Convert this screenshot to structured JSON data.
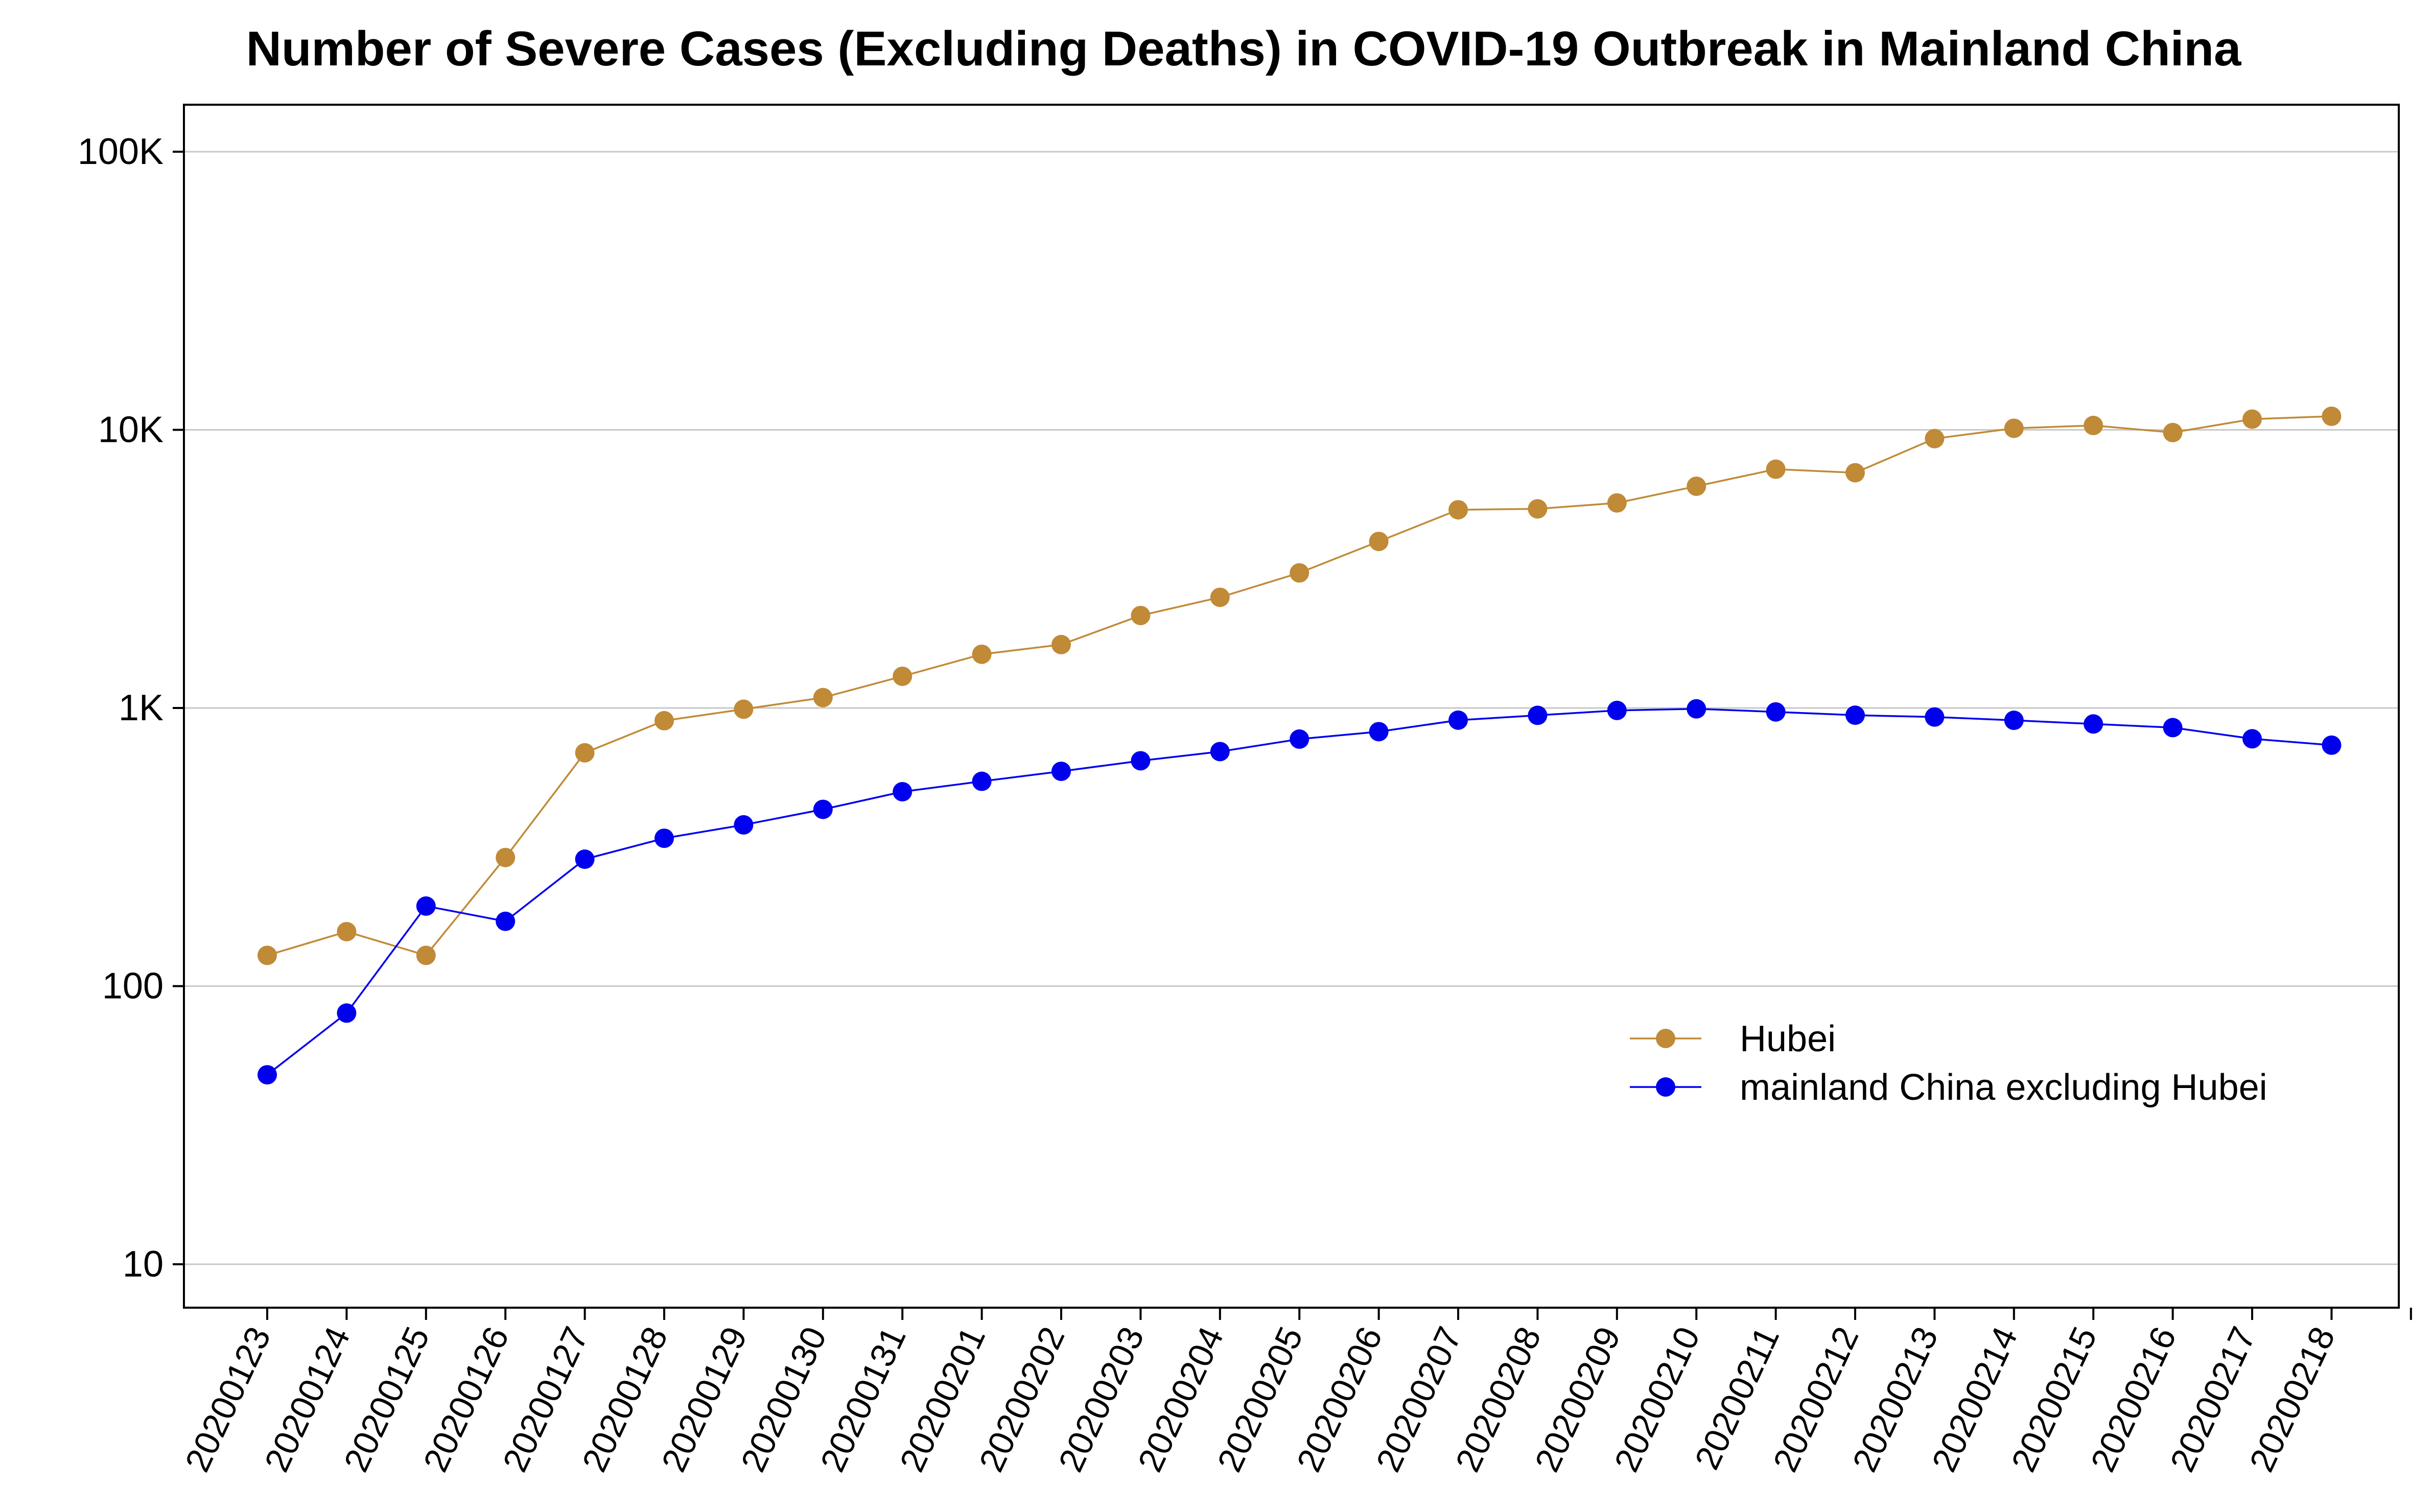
{
  "chart_data": {
    "type": "line",
    "title": "Number of Severe Cases (Excluding Deaths) in COVID-19 Outbreak in Mainland China",
    "xlabel": "",
    "ylabel": "",
    "y_scale": "log",
    "ylim": [
      7,
      150000
    ],
    "y_ticks": [
      {
        "value": 10,
        "label": "10"
      },
      {
        "value": 100,
        "label": "100"
      },
      {
        "value": 1000,
        "label": "1K"
      },
      {
        "value": 10000,
        "label": "10K"
      },
      {
        "value": 100000,
        "label": "100K"
      }
    ],
    "grid": "horizontal",
    "legend_position": "lower-right",
    "categories": [
      "20200123",
      "20200124",
      "20200125",
      "20200126",
      "20200127",
      "20200128",
      "20200129",
      "20200130",
      "20200131",
      "20200201",
      "20200202",
      "20200203",
      "20200204",
      "20200205",
      "20200206",
      "20200207",
      "20200208",
      "20200209",
      "20200210",
      "20200211",
      "20200212",
      "20200213",
      "20200214",
      "20200215",
      "20200216",
      "20200217",
      "20200218"
    ],
    "series": [
      {
        "name": "Hubei",
        "color": "#C08A37",
        "values": [
          129,
          157,
          129,
          290,
          690,
          900,
          990,
          1090,
          1300,
          1560,
          1690,
          2150,
          2500,
          3060,
          3970,
          5160,
          5200,
          5460,
          6270,
          7220,
          7010,
          9300,
          10130,
          10370,
          9780,
          10930,
          11190
        ]
      },
      {
        "name": "mainland China excluding Hubei",
        "color": "#0000EE",
        "values": [
          48,
          80,
          194,
          171,
          286,
          340,
          380,
          432,
          500,
          545,
          592,
          646,
          697,
          773,
          822,
          904,
          941,
          980,
          993,
          968,
          942,
          928,
          903,
          876,
          850,
          775,
          735
        ]
      }
    ]
  }
}
